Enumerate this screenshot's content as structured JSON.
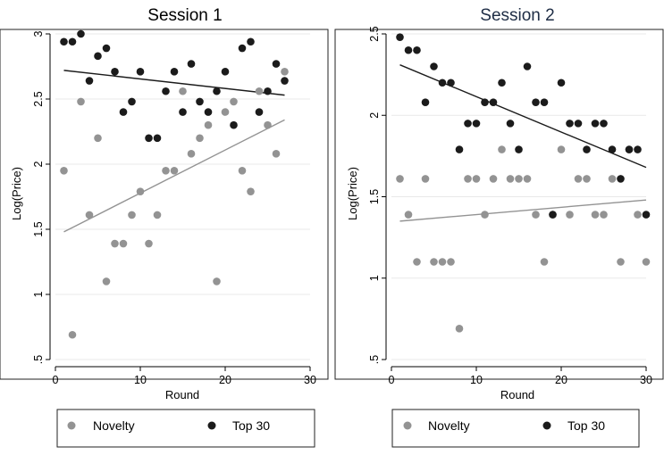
{
  "colors": {
    "novelty": "#939393",
    "top30": "#1b1b1b",
    "title1": "#000000",
    "title2": "#1e2d45",
    "grid": "#e9e9e9"
  },
  "legend": {
    "novelty": "Novelty",
    "top30": "Top 30"
  },
  "chart_data": [
    {
      "type": "scatter",
      "title": "Session 1",
      "xlabel": "Round",
      "ylabel": "Log(Price)",
      "xlim": [
        0,
        30
      ],
      "ylim": [
        0.5,
        3
      ],
      "xticks": [
        0,
        10,
        20,
        30
      ],
      "yticks": [
        0.5,
        1,
        1.5,
        2,
        2.5,
        3
      ],
      "ytick_labels": [
        ".5",
        "1",
        "1.5",
        "2",
        "2.5",
        "3"
      ],
      "grid": true,
      "legend": "bottom",
      "series": [
        {
          "name": "Novelty",
          "x": [
            1,
            2,
            3,
            4,
            5,
            6,
            7,
            8,
            9,
            10,
            11,
            12,
            13,
            14,
            15,
            16,
            17,
            18,
            19,
            20,
            21,
            22,
            23,
            24,
            25,
            26,
            27
          ],
          "y": [
            1.95,
            0.69,
            2.48,
            1.61,
            2.2,
            1.1,
            1.39,
            1.39,
            1.61,
            1.79,
            1.39,
            1.61,
            1.95,
            1.95,
            2.56,
            2.08,
            2.2,
            2.3,
            1.1,
            2.4,
            2.48,
            1.95,
            1.79,
            2.56,
            2.3,
            2.08,
            2.71
          ],
          "fit": {
            "x": [
              1,
              27
            ],
            "y": [
              1.48,
              2.34
            ]
          }
        },
        {
          "name": "Top 30",
          "x": [
            1,
            2,
            3,
            4,
            5,
            6,
            7,
            8,
            9,
            10,
            11,
            12,
            13,
            14,
            15,
            16,
            17,
            18,
            19,
            20,
            21,
            22,
            23,
            24,
            25,
            26,
            27
          ],
          "y": [
            2.94,
            2.94,
            3.0,
            2.64,
            2.83,
            2.89,
            2.71,
            2.4,
            2.48,
            2.71,
            2.2,
            2.2,
            2.56,
            2.71,
            2.4,
            2.77,
            2.48,
            2.4,
            2.56,
            2.71,
            2.3,
            2.89,
            2.94,
            2.4,
            2.56,
            2.77,
            2.64
          ],
          "fit": {
            "x": [
              1,
              27
            ],
            "y": [
              2.72,
              2.53
            ]
          }
        }
      ]
    },
    {
      "type": "scatter",
      "title": "Session 2",
      "xlabel": "Round",
      "ylabel": "Log(Price)",
      "xlim": [
        0,
        30
      ],
      "ylim": [
        0.5,
        2.5
      ],
      "xticks": [
        0,
        10,
        20,
        30
      ],
      "yticks": [
        0.5,
        1,
        1.5,
        2,
        2.5
      ],
      "ytick_labels": [
        ".5",
        "1",
        "1.5",
        "2",
        "2.5"
      ],
      "grid": true,
      "legend": "bottom",
      "series": [
        {
          "name": "Novelty",
          "x": [
            1,
            2,
            3,
            4,
            5,
            6,
            7,
            8,
            9,
            10,
            11,
            12,
            13,
            14,
            15,
            16,
            17,
            18,
            19,
            20,
            21,
            22,
            23,
            24,
            25,
            26,
            27,
            28,
            29,
            30
          ],
          "y": [
            1.61,
            1.39,
            1.1,
            1.61,
            1.1,
            1.1,
            1.1,
            0.69,
            1.61,
            1.61,
            1.39,
            1.61,
            1.79,
            1.61,
            1.61,
            1.61,
            1.39,
            1.1,
            1.39,
            1.79,
            1.39,
            1.61,
            1.61,
            1.39,
            1.39,
            1.61,
            1.1,
            1.79,
            1.39,
            1.1
          ],
          "fit": {
            "x": [
              1,
              30
            ],
            "y": [
              1.35,
              1.48
            ]
          }
        },
        {
          "name": "Top 30",
          "x": [
            1,
            2,
            3,
            4,
            5,
            6,
            7,
            8,
            9,
            10,
            11,
            12,
            13,
            14,
            15,
            16,
            17,
            18,
            19,
            20,
            21,
            22,
            23,
            24,
            25,
            26,
            27,
            28,
            29,
            30
          ],
          "y": [
            2.48,
            2.4,
            2.4,
            2.08,
            2.3,
            2.2,
            2.2,
            1.79,
            1.95,
            1.95,
            2.08,
            2.08,
            2.2,
            1.95,
            1.79,
            2.3,
            2.08,
            2.08,
            1.39,
            2.2,
            1.95,
            1.95,
            1.79,
            1.95,
            1.95,
            1.79,
            1.61,
            1.79,
            1.79,
            1.39
          ],
          "fit": {
            "x": [
              1,
              30
            ],
            "y": [
              2.31,
              1.68
            ]
          }
        }
      ]
    }
  ]
}
